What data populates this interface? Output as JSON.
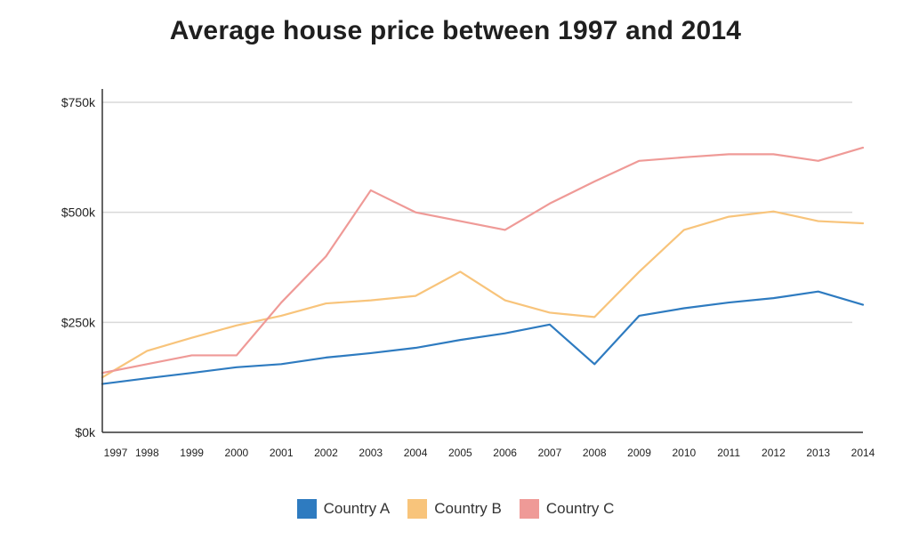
{
  "chart_data": {
    "type": "line",
    "title": "Average house price between 1997 and 2014",
    "x": [
      "1997",
      "1998",
      "1999",
      "2000",
      "2001",
      "2002",
      "2003",
      "2004",
      "2005",
      "2006",
      "2007",
      "2008",
      "2009",
      "2010",
      "2011",
      "2012",
      "2013",
      "2014"
    ],
    "y_ticks": [
      "$0k",
      "$250k",
      "$500k",
      "$750k"
    ],
    "ylim": [
      0,
      750
    ],
    "y_unit": "thousand $",
    "grid": "horizontal",
    "legend_position": "bottom",
    "series": [
      {
        "name": "Country A",
        "color": "#2e7bc0",
        "values": [
          110,
          123,
          135,
          148,
          155,
          170,
          180,
          192,
          210,
          225,
          245,
          155,
          265,
          282,
          295,
          305,
          320,
          290
        ]
      },
      {
        "name": "Country B",
        "color": "#f8c47b",
        "values": [
          125,
          185,
          215,
          243,
          265,
          293,
          300,
          310,
          365,
          300,
          272,
          262,
          365,
          460,
          490,
          502,
          480,
          475
        ]
      },
      {
        "name": "Country C",
        "color": "#ef9a97",
        "values": [
          135,
          155,
          175,
          175,
          295,
          400,
          550,
          500,
          480,
          460,
          520,
          570,
          617,
          625,
          632,
          632,
          617,
          647
        ]
      }
    ]
  }
}
